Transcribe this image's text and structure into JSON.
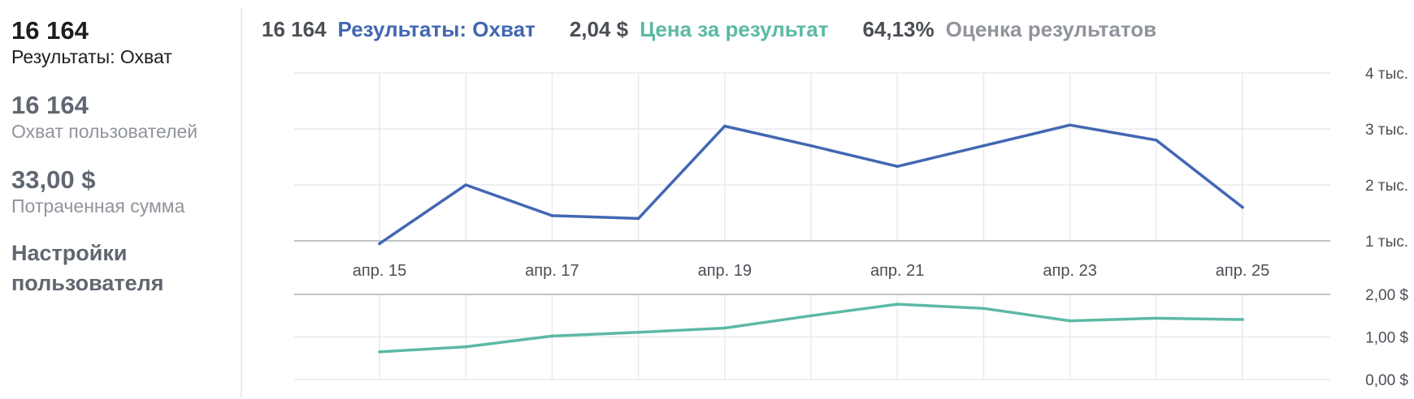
{
  "sidebar": {
    "stats": [
      {
        "value": "16 164",
        "label": "Результаты: Охват"
      },
      {
        "value": "16 164",
        "label": "Охват пользователей"
      },
      {
        "value": "33,00 $",
        "label": "Потраченная сумма"
      }
    ],
    "settings_line1": "Настройки",
    "settings_line2": "пользователя"
  },
  "summary": [
    {
      "value": "16 164",
      "label": "Результаты: Охват"
    },
    {
      "value": "2,04 $",
      "label": "Цена за результат"
    },
    {
      "value": "64,13%",
      "label": "Оценка результатов"
    }
  ],
  "colors": {
    "reach": "#4267b2",
    "cost": "#5cb9a4",
    "grid": "#e9eaed",
    "axis": "#bec3c9"
  },
  "chart_data": [
    {
      "type": "line",
      "x": [
        "апр. 15",
        "апр. 16",
        "апр. 17",
        "апр. 18",
        "апр. 19",
        "апр. 20",
        "апр. 21",
        "апр. 22",
        "апр. 23",
        "апр. 24",
        "апр. 25"
      ],
      "x_tick_labels": [
        "апр. 15",
        "апр. 17",
        "апр. 19",
        "апр. 21",
        "апр. 23",
        "апр. 25"
      ],
      "series": [
        {
          "values": [
            950,
            2000,
            1450,
            1400,
            3050,
            2700,
            2330,
            2700,
            3070,
            2800,
            1600
          ]
        }
      ],
      "y_ticks": [
        1000,
        2000,
        3000,
        4000
      ],
      "y_tick_labels": [
        "1 тыс.",
        "2 тыс.",
        "3 тыс.",
        "4 тыс."
      ],
      "ylim": [
        1000,
        4000
      ],
      "grid": true,
      "color": "#4267b2"
    },
    {
      "type": "line",
      "x": [
        "апр. 15",
        "апр. 16",
        "апр. 17",
        "апр. 18",
        "апр. 19",
        "апр. 20",
        "апр. 21",
        "апр. 22",
        "апр. 23",
        "апр. 24",
        "апр. 25"
      ],
      "series": [
        {
          "values": [
            0.65,
            0.77,
            1.02,
            1.11,
            1.21,
            1.5,
            1.77,
            1.67,
            1.38,
            1.44,
            1.41
          ]
        }
      ],
      "y_ticks": [
        0,
        1,
        2
      ],
      "y_tick_labels": [
        "0,00 $",
        "1,00 $",
        "2,00 $"
      ],
      "ylim": [
        0,
        2
      ],
      "grid": true,
      "color": "#5cb9a4"
    }
  ]
}
